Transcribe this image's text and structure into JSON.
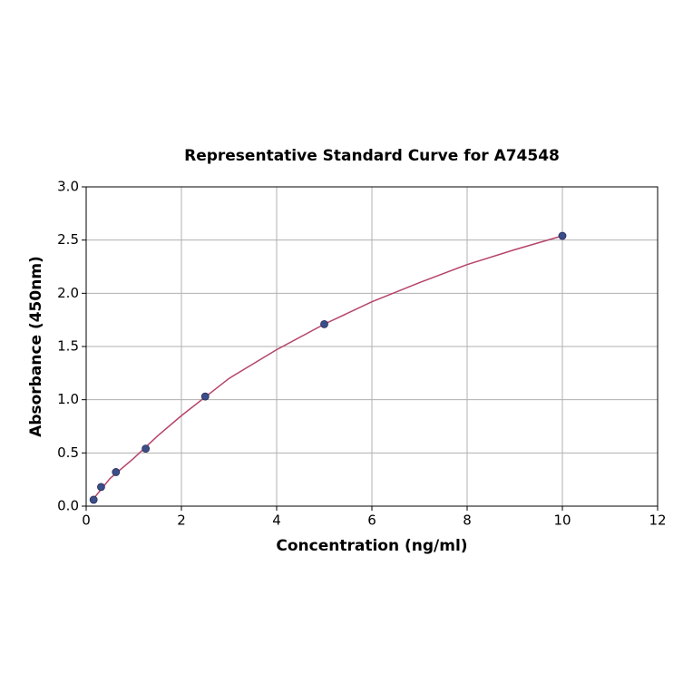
{
  "chart_data": {
    "type": "scatter",
    "title": "Representative Standard Curve for A74548",
    "x_label": "Concentration (ng/ml)",
    "y_label": "Absorbance (450nm)",
    "x": [
      0.156,
      0.313,
      0.625,
      1.25,
      2.5,
      5,
      10
    ],
    "values": [
      0.06,
      0.18,
      0.32,
      0.54,
      1.03,
      1.71,
      2.54
    ],
    "color": "#3a4f8a",
    "curve": {
      "x": [
        0.1,
        0.5,
        1,
        1.5,
        2,
        3,
        4,
        5,
        6,
        7,
        8,
        9,
        10
      ],
      "values": [
        0.04,
        0.26,
        0.45,
        0.66,
        0.85,
        1.2,
        1.47,
        1.71,
        1.92,
        2.1,
        2.27,
        2.41,
        2.54
      ],
      "color": "#b5446a"
    },
    "xlim": [
      0,
      12
    ],
    "xticks": [
      0,
      2,
      4,
      6,
      8,
      10,
      12
    ],
    "ylim": [
      0,
      3
    ],
    "yticks": [
      {
        "value": 0,
        "label": "0.0"
      },
      {
        "value": 0.5,
        "label": "0.5"
      },
      {
        "value": 1,
        "label": "1.0"
      },
      {
        "value": 1.5,
        "label": "1.5"
      },
      {
        "value": 2,
        "label": "2.0"
      },
      {
        "value": 2.5,
        "label": "2.5"
      },
      {
        "value": 3,
        "label": "3.0"
      }
    ],
    "grid": true
  }
}
